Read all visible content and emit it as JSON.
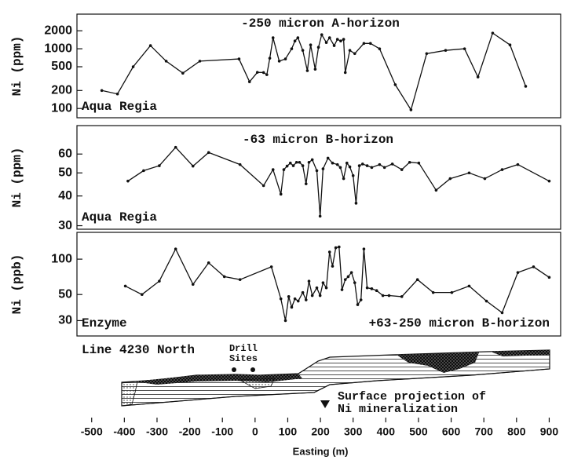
{
  "x_axis": {
    "label": "Easting (m)",
    "xlim": [
      -545,
      935
    ],
    "xticks": [
      -500,
      -400,
      -300,
      -200,
      -100,
      0,
      100,
      200,
      300,
      400,
      500,
      600,
      700,
      800,
      900
    ]
  },
  "chart_data": [
    {
      "type": "line",
      "title": "-250 micron A-horizon",
      "ylabel": "Ni (ppm)",
      "note": "Aqua Regia",
      "log_y": true,
      "color": "#111111",
      "ylim": [
        70,
        3800
      ],
      "yticks": [
        100,
        200,
        500,
        1000,
        2000
      ],
      "x": [
        -469,
        -421,
        -373,
        -320,
        -272,
        -221,
        -169,
        -49,
        -17,
        7,
        26,
        36,
        45,
        55,
        74,
        93,
        112,
        122,
        131,
        146,
        160,
        170,
        184,
        194,
        204,
        218,
        228,
        242,
        252,
        262,
        271,
        276,
        290,
        305,
        333,
        353,
        381,
        429,
        477,
        525,
        583,
        641,
        682,
        727,
        780,
        828
      ],
      "values": [
        200,
        175,
        500,
        1130,
        620,
        390,
        620,
        675,
        280,
        403,
        400,
        368,
        695,
        1530,
        620,
        675,
        1000,
        1350,
        1530,
        940,
        430,
        1160,
        455,
        1060,
        1720,
        1270,
        1530,
        1130,
        1440,
        1350,
        1440,
        400,
        940,
        830,
        1230,
        1230,
        1000,
        250,
        95,
        830,
        940,
        1000,
        337,
        1830,
        1160,
        235
      ]
    },
    {
      "type": "line",
      "title": "-63 micron B-horizon",
      "ylabel": "Ni (ppm)",
      "note": "Aqua Regia",
      "log_y": true,
      "color": "#111111",
      "ylim": [
        29,
        79
      ],
      "yticks": [
        30,
        40,
        50,
        60
      ],
      "x": [
        -389,
        -341,
        -293,
        -243,
        -190,
        -142,
        -46,
        26,
        55,
        79,
        88,
        98,
        108,
        117,
        127,
        136,
        146,
        156,
        165,
        175,
        189,
        199,
        208,
        223,
        237,
        252,
        261,
        271,
        281,
        290,
        300,
        309,
        319,
        329,
        343,
        357,
        381,
        396,
        420,
        449,
        473,
        501,
        554,
        597,
        655,
        703,
        756,
        804,
        900
      ],
      "values": [
        46.2,
        51.1,
        53.6,
        64,
        53.4,
        60.9,
        54.2,
        44.2,
        51.6,
        40.7,
        51.6,
        53.4,
        55,
        53.6,
        55.4,
        55.4,
        53.6,
        45,
        55.4,
        56.8,
        51.1,
        32.9,
        52,
        57.7,
        55,
        54.2,
        52.7,
        47.3,
        55,
        53,
        48.7,
        37.3,
        53.6,
        54.5,
        53.6,
        52.7,
        54.2,
        52.7,
        54.5,
        51.6,
        55.4,
        55,
        42.3,
        47.3,
        50,
        47.3,
        51.6,
        54.2,
        46.2
      ]
    },
    {
      "type": "line",
      "title": "+63-250 micron B-horizon",
      "ylabel": "Ni (ppb)",
      "note": "Enzyme",
      "log_y": true,
      "color": "#111111",
      "ylim": [
        22.2,
        169
      ],
      "yticks": [
        30,
        50,
        100
      ],
      "x": [
        -397,
        -346,
        -293,
        -243,
        -190,
        -142,
        -94,
        -46,
        50,
        79,
        93,
        103,
        112,
        122,
        132,
        146,
        156,
        165,
        175,
        189,
        199,
        208,
        218,
        228,
        237,
        247,
        257,
        266,
        276,
        285,
        295,
        305,
        314,
        324,
        333,
        343,
        357,
        372,
        391,
        410,
        449,
        497,
        545,
        602,
        655,
        708,
        756,
        804,
        852,
        900
      ],
      "values": [
        59,
        50,
        65,
        122,
        61,
        93,
        71,
        67,
        86,
        46,
        30,
        48,
        39,
        46,
        44,
        52,
        45,
        65,
        49,
        57,
        49,
        63,
        57,
        115,
        87,
        125,
        127,
        55,
        67,
        71,
        77,
        63,
        41,
        45,
        122,
        57,
        56,
        54,
        49,
        49,
        48,
        67,
        52,
        52,
        59,
        44,
        35,
        77,
        86,
        70
      ]
    }
  ],
  "section": {
    "title": "Line 4230 North",
    "drill_label": [
      "Drill",
      "Sites"
    ],
    "projection_label": [
      "Surface projection of",
      "Ni mineralization"
    ]
  }
}
